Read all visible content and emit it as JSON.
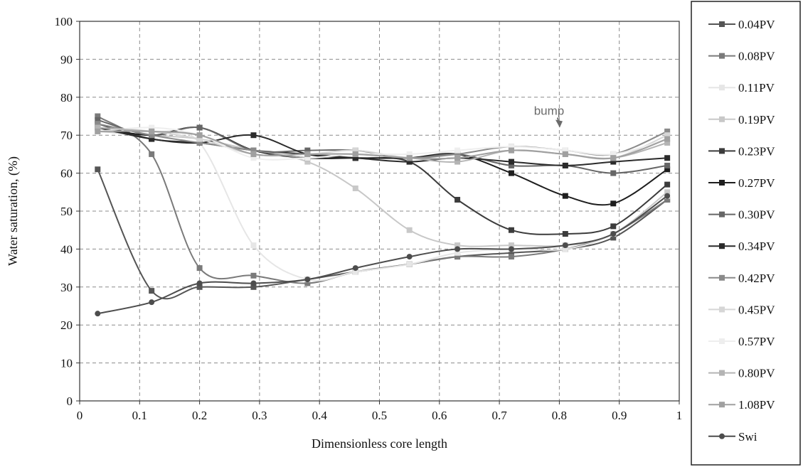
{
  "chart_data": {
    "type": "line",
    "xlabel": "Dimensionless core length",
    "ylabel": "Water saturation, (%)",
    "xlim": [
      0,
      1
    ],
    "ylim": [
      0,
      100
    ],
    "xticks": [
      "0",
      "0.1",
      "0.2",
      "0.3",
      "0.4",
      "0.5",
      "0.6",
      "0.7",
      "0.8",
      "0.9",
      "1"
    ],
    "yticks": [
      "0",
      "10",
      "20",
      "30",
      "40",
      "50",
      "60",
      "70",
      "80",
      "90",
      "100"
    ],
    "grid": true,
    "legend_position": "right",
    "x": [
      0.03,
      0.12,
      0.2,
      0.29,
      0.38,
      0.46,
      0.55,
      0.63,
      0.72,
      0.81,
      0.89,
      0.98
    ],
    "series": [
      {
        "name": "0.04PV",
        "color": "#555555",
        "marker": "square",
        "values": [
          61,
          29,
          30,
          30,
          32,
          34,
          36,
          38,
          39,
          40,
          43,
          53
        ]
      },
      {
        "name": "0.08PV",
        "color": "#7a7a7a",
        "marker": "square",
        "values": [
          75,
          65,
          35,
          33,
          31,
          34,
          36,
          38,
          38,
          40,
          44,
          53
        ]
      },
      {
        "name": "0.11PV",
        "color": "#e6e6e6",
        "marker": "square",
        "values": [
          72,
          71,
          68,
          41,
          32,
          34,
          36,
          39,
          40,
          40,
          44,
          54
        ]
      },
      {
        "name": "0.19PV",
        "color": "#c8c8c8",
        "marker": "square",
        "values": [
          71,
          70,
          69,
          66,
          63,
          56,
          45,
          41,
          41,
          41,
          44,
          55
        ]
      },
      {
        "name": "0.23PV",
        "color": "#3c3c3c",
        "marker": "square",
        "values": [
          73,
          69,
          68,
          66,
          65,
          64,
          63,
          53,
          45,
          44,
          46,
          57
        ]
      },
      {
        "name": "0.27PV",
        "color": "#1e1e1e",
        "marker": "square",
        "values": [
          72,
          70,
          72,
          66,
          64,
          64,
          64,
          65,
          60,
          54,
          52,
          61
        ]
      },
      {
        "name": "0.30PV",
        "color": "#666666",
        "marker": "square",
        "values": [
          74,
          70,
          72,
          66,
          66,
          66,
          64,
          65,
          62,
          62,
          60,
          62
        ]
      },
      {
        "name": "0.34PV",
        "color": "#2b2b2b",
        "marker": "square",
        "values": [
          72,
          69,
          68,
          70,
          65,
          64,
          63,
          64,
          63,
          62,
          63,
          64
        ]
      },
      {
        "name": "0.42PV",
        "color": "#8a8a8a",
        "marker": "square",
        "values": [
          73,
          70,
          68,
          66,
          64,
          65,
          64,
          65,
          67,
          66,
          65,
          71
        ]
      },
      {
        "name": "0.45PV",
        "color": "#d6d6d6",
        "marker": "square",
        "values": [
          72,
          71,
          69,
          65,
          65,
          66,
          64,
          64,
          66,
          65,
          64,
          70
        ]
      },
      {
        "name": "0.57PV",
        "color": "#eeeeee",
        "marker": "square",
        "values": [
          71,
          72,
          70,
          64,
          64,
          65,
          65,
          66,
          67,
          66,
          65,
          69
        ]
      },
      {
        "name": "0.80PV",
        "color": "#b4b4b4",
        "marker": "square",
        "values": [
          72,
          71,
          70,
          65,
          65,
          65,
          64,
          63,
          66,
          65,
          64,
          68
        ]
      },
      {
        "name": "1.08PV",
        "color": "#a0a0a0",
        "marker": "square",
        "values": [
          71,
          71,
          70,
          65,
          65,
          65,
          64,
          64,
          66,
          65,
          64,
          69
        ]
      },
      {
        "name": "Swi",
        "color": "#4d4d4d",
        "marker": "circle",
        "values": [
          23,
          26,
          31,
          31,
          32,
          35,
          38,
          40,
          40,
          41,
          44,
          54
        ]
      }
    ],
    "annotations": [
      {
        "text": "bump",
        "x": 0.79,
        "y": 72
      }
    ]
  }
}
